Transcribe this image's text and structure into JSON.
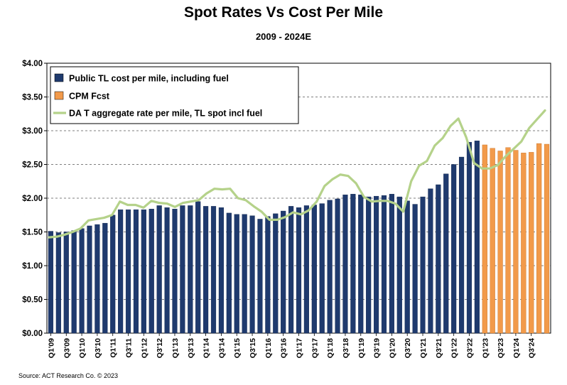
{
  "chart_data": {
    "type": "bar",
    "title": "Spot Rates Vs Cost Per Mile",
    "subtitle": "2009 - 2024E",
    "source": "Source: ACT Research Co. © 2023",
    "y_ticks": [
      "$4.00",
      "$3.50",
      "$3.00",
      "$2.50",
      "$2.00",
      "$1.50",
      "$1.00",
      "$0.50",
      "$0.00"
    ],
    "ylim": [
      0,
      4
    ],
    "grid": "horizontal dashed",
    "legend_position": "top-left",
    "x_tick_labels": [
      "Q1'09",
      "Q3'09",
      "Q1'10",
      "Q3'10",
      "Q1'11",
      "Q3'11",
      "Q1'12",
      "Q3'12",
      "Q1'13",
      "Q3'13",
      "Q1'14",
      "Q3'14",
      "Q1'15",
      "Q3'15",
      "Q1'16",
      "Q3'16",
      "Q1'17",
      "Q3'17",
      "Q1'18",
      "Q3'18",
      "Q1'19",
      "Q3'19",
      "Q1'20",
      "Q3'20",
      "Q1'21",
      "Q3'21",
      "Q1'22",
      "Q3'22",
      "Q1'23",
      "Q3'23",
      "Q1'24",
      "Q3'24"
    ],
    "series": [
      {
        "name": "Public TL cost per mile, including fuel",
        "kind": "bar",
        "color": "#1f3a6e",
        "values": [
          1.51,
          1.49,
          1.5,
          1.52,
          1.55,
          1.59,
          1.61,
          1.63,
          1.75,
          1.83,
          1.83,
          1.83,
          1.83,
          1.84,
          1.89,
          1.86,
          1.84,
          1.89,
          1.89,
          1.95,
          1.88,
          1.88,
          1.86,
          1.78,
          1.76,
          1.76,
          1.74,
          1.69,
          1.73,
          1.77,
          1.81,
          1.88,
          1.86,
          1.89,
          1.9,
          1.92,
          1.97,
          1.99,
          2.05,
          2.06,
          2.05,
          2.02,
          2.03,
          2.04,
          2.06,
          2.02,
          1.96,
          1.91,
          2.02,
          2.14,
          2.2,
          2.36,
          2.5,
          2.61,
          2.83,
          2.85
        ]
      },
      {
        "name": "CPM Fcst",
        "kind": "bar",
        "color": "#f29a4a",
        "values": [
          2.79,
          2.74,
          2.7,
          2.75,
          2.71,
          2.67,
          2.68,
          2.81,
          2.8
        ]
      },
      {
        "name": "DA T aggregate rate per mile, TL spot  incl fuel",
        "kind": "line",
        "color": "#b5d28a",
        "values": [
          1.42,
          1.43,
          1.46,
          1.5,
          1.55,
          1.67,
          1.69,
          1.71,
          1.75,
          1.95,
          1.9,
          1.9,
          1.86,
          1.96,
          1.93,
          1.92,
          1.87,
          1.93,
          1.95,
          1.97,
          2.07,
          2.14,
          2.13,
          2.14,
          2.0,
          1.97,
          1.88,
          1.8,
          1.68,
          1.68,
          1.72,
          1.79,
          1.76,
          1.82,
          1.95,
          2.18,
          2.28,
          2.35,
          2.33,
          2.22,
          2.02,
          1.95,
          1.96,
          1.96,
          1.92,
          1.8,
          2.25,
          2.48,
          2.55,
          2.78,
          2.89,
          3.07,
          3.18,
          2.9,
          2.52,
          2.44,
          2.44,
          2.49,
          2.62,
          2.73,
          2.84,
          3.04,
          3.17,
          3.3
        ]
      }
    ]
  }
}
